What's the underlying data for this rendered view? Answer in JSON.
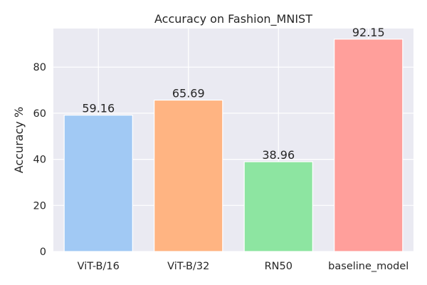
{
  "chart_data": {
    "type": "bar",
    "title": "Accuracy on Fashion_MNIST",
    "xlabel": "",
    "ylabel": "Accuracy %",
    "categories": [
      "ViT-B/16",
      "ViT-B/32",
      "RN50",
      "baseline_model"
    ],
    "values": [
      59.16,
      65.69,
      38.96,
      92.15
    ],
    "data_labels": [
      "59.16",
      "65.69",
      "38.96",
      "92.15"
    ],
    "colors": [
      "#a1c9f4",
      "#ffb482",
      "#8de5a1",
      "#ff9f9b"
    ],
    "ylim": [
      0,
      96.76
    ],
    "yticks": [
      0,
      20,
      40,
      60,
      80
    ],
    "ytick_labels": [
      "0",
      "20",
      "40",
      "60",
      "80"
    ],
    "grid": true,
    "legend": "none",
    "plot_background": "#eaeaf2",
    "grid_color": "#ffffff"
  }
}
